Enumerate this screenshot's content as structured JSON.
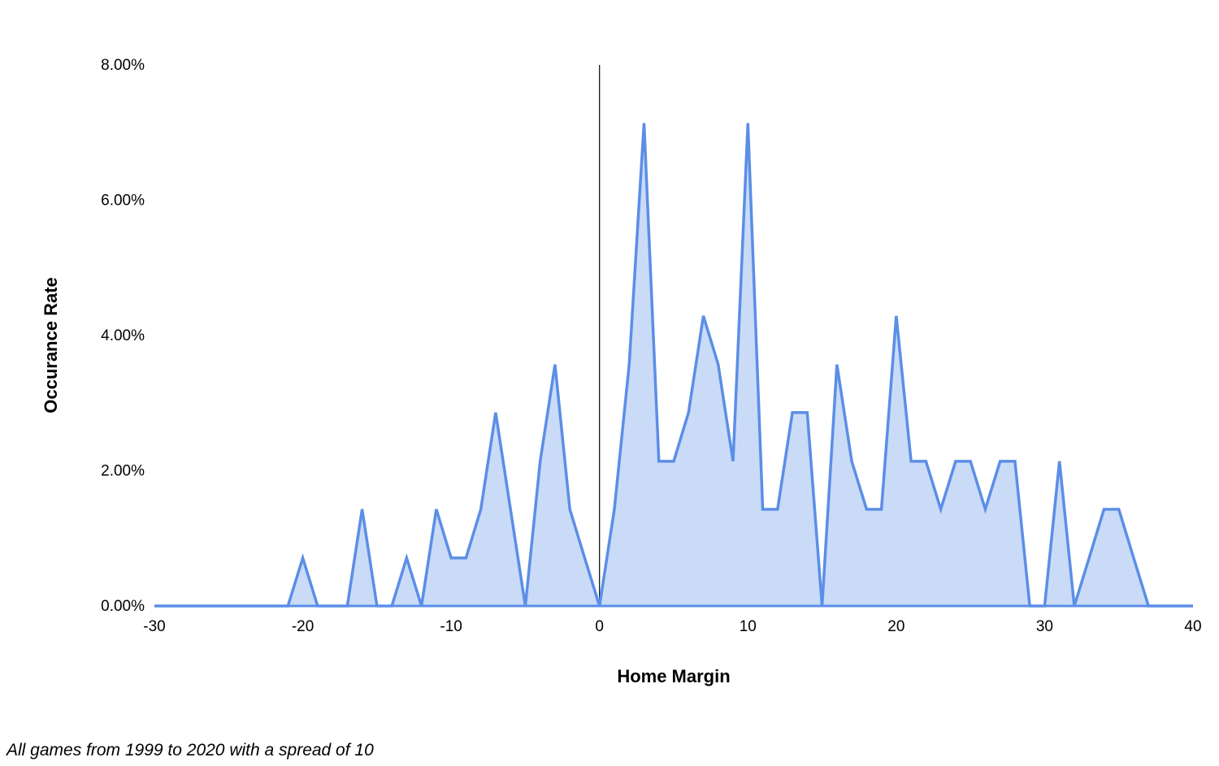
{
  "chart_data": {
    "type": "area",
    "xlabel": "Home Margin",
    "ylabel": "Occurance Rate",
    "xlim": [
      -30,
      40
    ],
    "ylim": [
      0,
      8
    ],
    "xticks": [
      -30,
      -20,
      -10,
      0,
      10,
      20,
      30,
      40
    ],
    "xtick_labels": [
      "-30",
      "-20",
      "-10",
      "0",
      "10",
      "20",
      "30",
      "40"
    ],
    "yticks": [
      0,
      2,
      4,
      6,
      8
    ],
    "ytick_labels": [
      "0.00%",
      "2.00%",
      "4.00%",
      "6.00%",
      "8.00%"
    ],
    "grid": false,
    "legend": "none",
    "line_color": "#5b8ee6",
    "fill_color": "#c9dbf7",
    "zero_line_color": "#000000",
    "series": [
      {
        "x": [
          -30,
          -29,
          -28,
          -27,
          -26,
          -25,
          -24,
          -23,
          -22,
          -21,
          -20,
          -19,
          -18,
          -17,
          -16,
          -15,
          -14,
          -13,
          -12,
          -11,
          -10,
          -9,
          -8,
          -7,
          -6,
          -5,
          -4,
          -3,
          -2,
          -1,
          0,
          1,
          2,
          3,
          4,
          5,
          6,
          7,
          8,
          9,
          10,
          11,
          12,
          13,
          14,
          15,
          16,
          17,
          18,
          19,
          20,
          21,
          22,
          23,
          24,
          25,
          26,
          27,
          28,
          29,
          30,
          31,
          32,
          33,
          34,
          35,
          36,
          37,
          38,
          39,
          40
        ],
        "values": [
          0,
          0,
          0,
          0,
          0,
          0,
          0,
          0,
          0,
          0,
          0.71,
          0,
          0,
          0,
          1.43,
          0,
          0,
          0.71,
          0,
          1.43,
          0.71,
          0.71,
          1.43,
          2.86,
          1.43,
          0,
          2.14,
          3.57,
          1.43,
          0.71,
          0,
          1.43,
          3.57,
          7.14,
          2.14,
          2.14,
          2.86,
          4.29,
          3.57,
          2.14,
          7.14,
          1.43,
          1.43,
          2.86,
          2.86,
          0,
          3.57,
          2.14,
          1.43,
          1.43,
          4.29,
          2.14,
          2.14,
          1.43,
          2.14,
          2.14,
          1.43,
          2.14,
          2.14,
          0,
          0,
          2.14,
          0,
          0.71,
          1.43,
          1.43,
          0.71,
          0,
          0,
          0,
          0
        ]
      }
    ]
  },
  "caption": "All games from 1999 to 2020 with a spread of 10"
}
